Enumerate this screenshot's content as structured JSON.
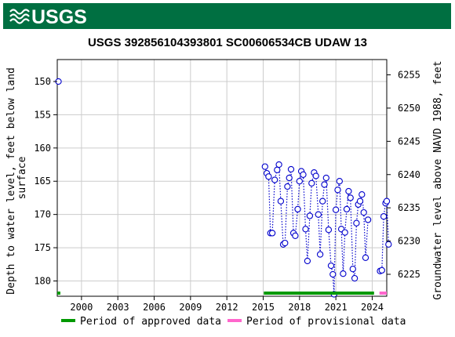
{
  "header": {
    "agency_logo_text": "USGS"
  },
  "chart_data": {
    "type": "scatter",
    "title": "USGS 392856104393801 SC00606534CB UDAW 13",
    "ylabel_left": "Depth to water level, feet below land surface",
    "ylabel_left_lines": [
      "Depth to water level, feet below land",
      "surface"
    ],
    "ylabel_right": "Groundwater level above NAVD 1988, feet",
    "xlim": [
      1998.0,
      2025.2
    ],
    "ylim_left": [
      182.3,
      146.7
    ],
    "ylim_right": [
      6221.7,
      6257.3
    ],
    "x_ticks": [
      2000,
      2003,
      2006,
      2009,
      2012,
      2015,
      2018,
      2021,
      2024
    ],
    "x_tick_labels": [
      "2000",
      "2003",
      "2006",
      "2009",
      "2012",
      "2015",
      "2018",
      "2021",
      "2024"
    ],
    "y_ticks_left": [
      150,
      155,
      160,
      165,
      170,
      175,
      180
    ],
    "y_tick_labels_left": [
      "150",
      "155",
      "160",
      "165",
      "170",
      "175",
      "180"
    ],
    "y_ticks_right": [
      6225,
      6230,
      6235,
      6240,
      6245,
      6250,
      6255
    ],
    "y_tick_labels_right": [
      "6225",
      "6230",
      "6235",
      "6240",
      "6245",
      "6250",
      "6255"
    ],
    "grid": true,
    "series": [
      {
        "name": "Groundwater level",
        "marker": "open-circle",
        "color": "#0000cc",
        "segments": [
          [
            [
              1998.1,
              150.0
            ]
          ],
          [
            [
              2015.15,
              162.8
            ],
            [
              2015.3,
              163.8
            ],
            [
              2015.45,
              164.3
            ],
            [
              2015.6,
              172.8
            ],
            [
              2015.75,
              172.8
            ],
            [
              2015.95,
              164.8
            ],
            [
              2016.15,
              163.3
            ],
            [
              2016.3,
              162.5
            ],
            [
              2016.45,
              168.0
            ],
            [
              2016.65,
              174.5
            ],
            [
              2016.8,
              174.3
            ],
            [
              2017.0,
              165.8
            ],
            [
              2017.15,
              164.5
            ],
            [
              2017.3,
              163.2
            ],
            [
              2017.5,
              172.8
            ],
            [
              2017.65,
              173.2
            ],
            [
              2017.85,
              169.2
            ],
            [
              2018.0,
              165.0
            ],
            [
              2018.15,
              163.5
            ],
            [
              2018.3,
              164.0
            ],
            [
              2018.5,
              172.2
            ],
            [
              2018.65,
              177.0
            ],
            [
              2018.85,
              170.2
            ],
            [
              2019.0,
              165.3
            ],
            [
              2019.2,
              163.7
            ],
            [
              2019.35,
              164.2
            ],
            [
              2019.55,
              170.0
            ],
            [
              2019.7,
              176.0
            ],
            [
              2019.9,
              168.0
            ],
            [
              2020.05,
              165.5
            ],
            [
              2020.2,
              164.5
            ],
            [
              2020.4,
              172.3
            ],
            [
              2020.6,
              177.7
            ],
            [
              2020.75,
              179.0
            ],
            [
              2020.85,
              182.0
            ],
            [
              2021.0,
              169.3
            ],
            [
              2021.15,
              166.3
            ],
            [
              2021.3,
              165.0
            ],
            [
              2021.45,
              172.2
            ],
            [
              2021.6,
              178.9
            ],
            [
              2021.75,
              172.7
            ],
            [
              2021.9,
              169.2
            ],
            [
              2022.05,
              166.5
            ],
            [
              2022.2,
              167.5
            ],
            [
              2022.4,
              178.2
            ],
            [
              2022.55,
              179.6
            ],
            [
              2022.7,
              171.3
            ],
            [
              2022.85,
              168.5
            ],
            [
              2023.0,
              168.0
            ],
            [
              2023.15,
              167.0
            ],
            [
              2023.3,
              169.7
            ],
            [
              2023.45,
              176.5
            ],
            [
              2023.65,
              170.8
            ]
          ],
          [
            [
              2024.65,
              178.5
            ],
            [
              2024.8,
              178.4
            ],
            [
              2024.95,
              170.3
            ],
            [
              2025.1,
              168.3
            ],
            [
              2025.2,
              168.0
            ],
            [
              2025.35,
              174.5
            ]
          ]
        ]
      }
    ],
    "approval_periods": [
      {
        "start": 1998.0,
        "end": 1998.25,
        "status": "approved",
        "color": "#009900"
      },
      {
        "start": 2015.05,
        "end": 2024.15,
        "status": "approved",
        "color": "#009900"
      },
      {
        "start": 2024.6,
        "end": 2025.65,
        "status": "provisional",
        "color": "#ff66cc"
      }
    ],
    "legend": {
      "placement": "bottom",
      "items": [
        {
          "label": "Period of approved data",
          "color": "#009900"
        },
        {
          "label": "Period of provisional data",
          "color": "#ff66cc"
        }
      ]
    }
  }
}
